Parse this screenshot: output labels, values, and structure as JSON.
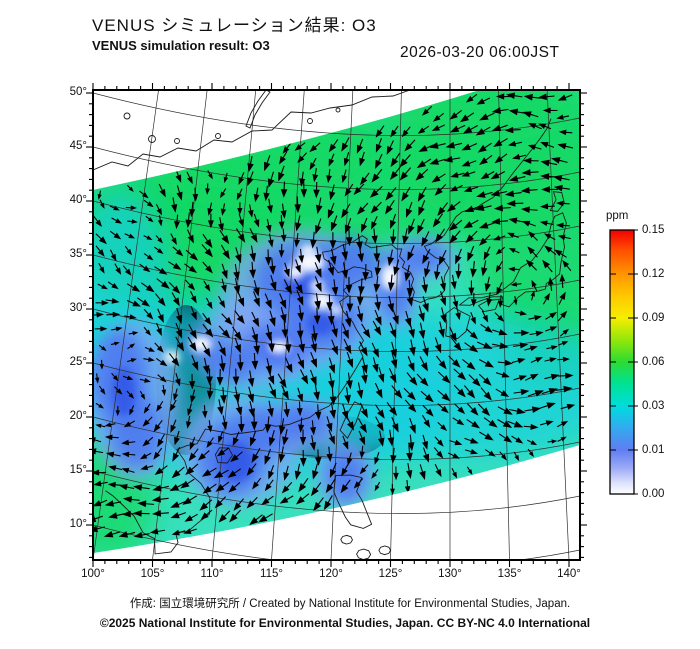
{
  "header": {
    "title_jp": "VENUS シミュレーション結果: O3",
    "title_en": "VENUS simulation result: O3",
    "datetime": "2026-03-20 06:00JST"
  },
  "map": {
    "y_axis_labels": [
      "50°",
      "45°",
      "40°",
      "35°",
      "30°",
      "25°",
      "20°",
      "15°",
      "10°"
    ],
    "x_axis_labels": [
      "100°",
      "105°",
      "110°",
      "115°",
      "120°",
      "125°",
      "130°",
      "135°",
      "140°"
    ]
  },
  "colorbar": {
    "unit": "ppm",
    "tick_labels": [
      "0.15",
      "0.12",
      "0.09",
      "0.06",
      "0.03",
      "0.01",
      "0.00"
    ],
    "levels": [
      0.0,
      0.01,
      0.03,
      0.06,
      0.09,
      0.12,
      0.15
    ],
    "top_color": "#f20000",
    "bottom_color": "#ffffff"
  },
  "footer": {
    "credit": "作成: 国立環境研究所 / Created by National Institute for Environmental Studies, Japan.",
    "license": "©2025 National Institute for Environmental Studies, Japan. CC BY-NC 4.0 International"
  },
  "chart_data": {
    "type": "heatmap",
    "title": "VENUS simulation result: O3",
    "datetime": "2026-03-20 06:00JST",
    "units": "ppm",
    "x_range_deg_east": [
      100,
      140
    ],
    "y_range_deg_north": [
      10,
      50
    ],
    "scale_levels_ppm": [
      0.0,
      0.01,
      0.03,
      0.06,
      0.09,
      0.12,
      0.15
    ],
    "overlay": "wind-vector-arrows",
    "field_summary": "O3 swath: mostly 0.03-0.06 ppm (cyan/green) over ocean and NE Asia; 0.00-0.01 ppm (blue/white) patches over central/south China and Korea; no-data white outside tilted satellite swath"
  }
}
